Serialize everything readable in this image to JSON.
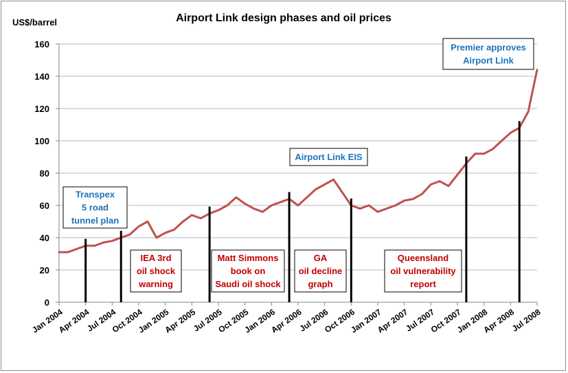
{
  "chart_data": {
    "type": "line",
    "title": "Airport Link design phases and oil prices",
    "ylabel": "US$/barrel",
    "xlabel": "",
    "ylim": [
      0,
      160
    ],
    "yticks": [
      0,
      20,
      40,
      60,
      80,
      100,
      120,
      140,
      160
    ],
    "x_range": [
      "2004-01",
      "2008-07"
    ],
    "xtick_labels": [
      "Jan 2004",
      "Apr 2004",
      "Jul 2004",
      "Oct 2004",
      "Jan 2005",
      "Apr 2005",
      "Jul 2005",
      "Oct 2005",
      "Jan 2006",
      "Apr 2006",
      "Jul 2006",
      "Oct 2006",
      "Jan 2007",
      "Apr 2007",
      "Jul 2007",
      "Oct 2007",
      "Jan 2008",
      "Apr 2008",
      "Jul 2008"
    ],
    "grid": "horizontal",
    "legend": "none",
    "line_color": "#c0504d",
    "series": [
      {
        "x": [
          "2004-01",
          "2004-02",
          "2004-03",
          "2004-04",
          "2004-05",
          "2004-06",
          "2004-07",
          "2004-08",
          "2004-09",
          "2004-10",
          "2004-11",
          "2004-12",
          "2005-01",
          "2005-02",
          "2005-03",
          "2005-04",
          "2005-05",
          "2005-06",
          "2005-07",
          "2005-08",
          "2005-09",
          "2005-10",
          "2005-11",
          "2005-12",
          "2006-01",
          "2006-02",
          "2006-03",
          "2006-04",
          "2006-05",
          "2006-06",
          "2006-07",
          "2006-08",
          "2006-09",
          "2006-10",
          "2006-11",
          "2006-12",
          "2007-01",
          "2007-02",
          "2007-03",
          "2007-04",
          "2007-05",
          "2007-06",
          "2007-07",
          "2007-08",
          "2007-09",
          "2007-10",
          "2007-11",
          "2007-12",
          "2008-01",
          "2008-02",
          "2008-03",
          "2008-04",
          "2008-05",
          "2008-06",
          "2008-07"
        ],
        "values": [
          31,
          31,
          33,
          35,
          35,
          37,
          38,
          40,
          42,
          47,
          50,
          40,
          43,
          45,
          50,
          54,
          52,
          55,
          57,
          60,
          65,
          61,
          58,
          56,
          60,
          62,
          64,
          60,
          65,
          70,
          73,
          76,
          68,
          60,
          58,
          60,
          56,
          58,
          60,
          63,
          64,
          67,
          73,
          75,
          72,
          79,
          86,
          92,
          92,
          95,
          100,
          105,
          108,
          118,
          144
        ]
      }
    ],
    "events": [
      {
        "date": "2004-04",
        "label_lines": [
          "Transpex",
          "5 road",
          "tunnel plan"
        ],
        "color": "#1f73b8"
      },
      {
        "date": "2004-08",
        "label_lines": [
          "IEA 3rd",
          "oil shock",
          "warning"
        ],
        "color": "#c00000"
      },
      {
        "date": "2005-06",
        "label_lines": [
          "Matt Simmons",
          "book on",
          "Saudi oil shock"
        ],
        "color": "#c00000"
      },
      {
        "date": "2006-03",
        "label_lines": [
          "GA",
          "oil decline",
          "graph"
        ],
        "color": "#c00000"
      },
      {
        "date": "2006-10",
        "label_lines": [
          "Airport Link EIS"
        ],
        "color": "#1f73b8"
      },
      {
        "date": "2007-11",
        "label_lines": [
          "Queensland",
          "oil vulnerability",
          "report"
        ],
        "color": "#c00000"
      },
      {
        "date": "2008-05",
        "label_lines": [
          "Premier approves",
          "Airport Link"
        ],
        "color": "#1f73b8"
      }
    ]
  }
}
